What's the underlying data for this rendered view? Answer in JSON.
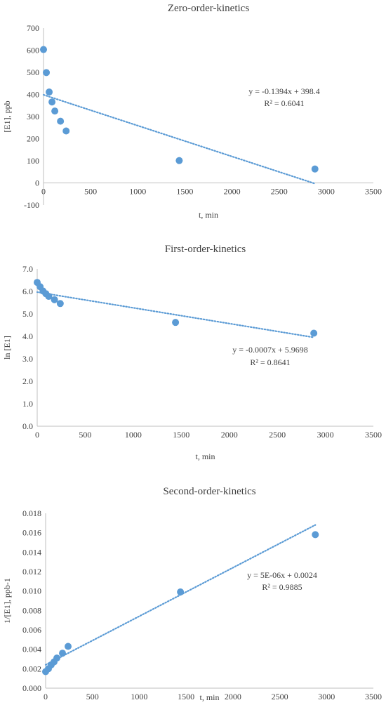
{
  "chart_data": [
    {
      "type": "scatter",
      "title": "Zero-order-kinetics",
      "xlabel": "t, min",
      "ylabel": "[E1], ppb",
      "xlim": [
        0,
        3500
      ],
      "ylim": [
        -100,
        700
      ],
      "xticks": [
        0,
        500,
        1000,
        1500,
        2000,
        2500,
        3000,
        3500
      ],
      "yticks": [
        -100,
        0,
        100,
        200,
        300,
        400,
        500,
        600,
        700
      ],
      "ydecimals": 0,
      "x": [
        0,
        30,
        60,
        90,
        120,
        180,
        240,
        1440,
        2880
      ],
      "y": [
        603,
        499,
        411,
        366,
        325,
        279,
        235,
        101,
        63
      ],
      "trendline": {
        "slope": -0.1394,
        "intercept": 398.4,
        "x_range": [
          0,
          2880
        ]
      },
      "equation": "y = -0.1394x + 398.4",
      "r2": "R² = 0.6041",
      "color": "#5b9bd5"
    },
    {
      "type": "scatter",
      "title": "First-order-kinetics",
      "xlabel": "t, min",
      "ylabel": "ln [E1]",
      "xlim": [
        0,
        3500
      ],
      "ylim": [
        0,
        7
      ],
      "xticks": [
        0,
        500,
        1000,
        1500,
        2000,
        2500,
        3000,
        3500
      ],
      "yticks": [
        0,
        1,
        2,
        3,
        4,
        5,
        6,
        7
      ],
      "ydecimals": 1,
      "x": [
        0,
        30,
        60,
        90,
        120,
        180,
        240,
        1440,
        2880
      ],
      "y": [
        6.4,
        6.21,
        6.02,
        5.9,
        5.78,
        5.63,
        5.46,
        4.62,
        4.14
      ],
      "trendline": {
        "slope": -0.0007,
        "intercept": 5.9698,
        "x_range": [
          0,
          2880
        ]
      },
      "equation": "y = -0.0007x + 5.9698",
      "r2": "R² = 0.8641",
      "color": "#5b9bd5"
    },
    {
      "type": "scatter",
      "title": "Second-order-kinetics",
      "xlabel": "t, min",
      "ylabel": "1/[E1], ppb-1",
      "xlim": [
        0,
        3500
      ],
      "ylim": [
        0,
        0.018
      ],
      "xticks": [
        0,
        500,
        1000,
        1500,
        2000,
        2500,
        3000,
        3500
      ],
      "yticks": [
        0,
        0.002,
        0.004,
        0.006,
        0.008,
        0.01,
        0.012,
        0.014,
        0.016,
        0.018
      ],
      "ydecimals": 3,
      "x": [
        0,
        30,
        60,
        90,
        120,
        180,
        240,
        1440,
        2880
      ],
      "y": [
        0.0017,
        0.002,
        0.0024,
        0.0027,
        0.0031,
        0.0036,
        0.0043,
        0.0099,
        0.0158
      ],
      "trendline": {
        "slope": 5e-06,
        "intercept": 0.0024,
        "x_range": [
          0,
          2880
        ]
      },
      "equation": "y = 5E-06x + 0.0024",
      "r2": "R² = 0.9885",
      "color": "#5b9bd5"
    }
  ]
}
